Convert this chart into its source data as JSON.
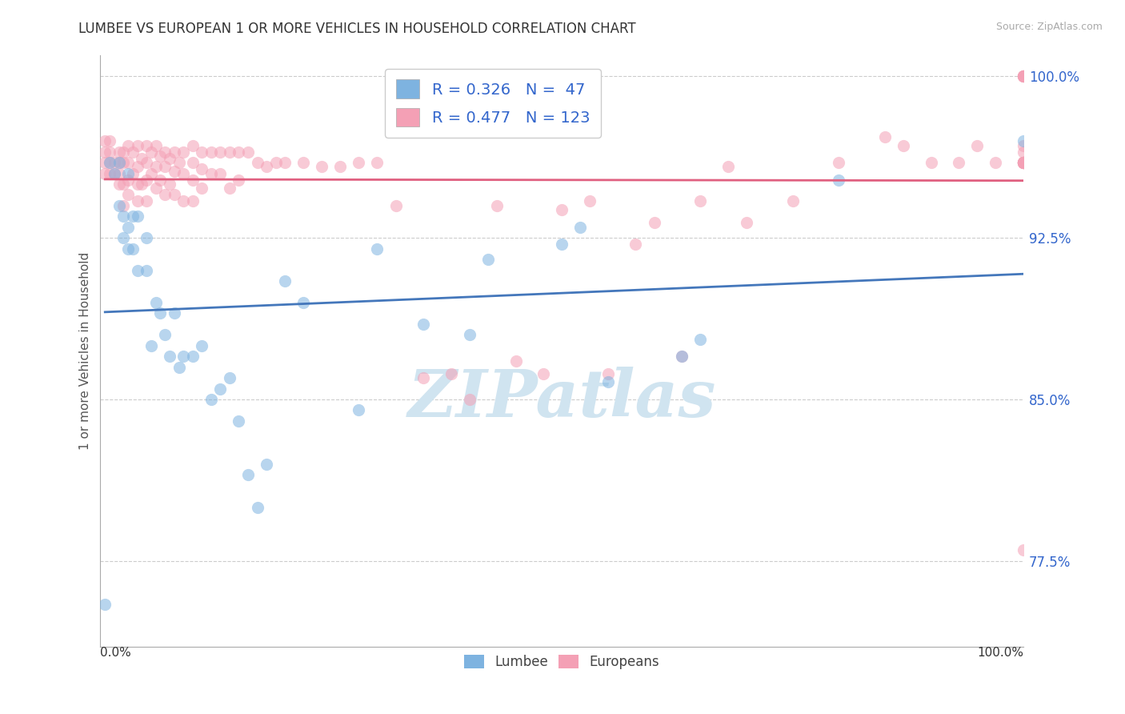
{
  "title": "LUMBEE VS EUROPEAN 1 OR MORE VEHICLES IN HOUSEHOLD CORRELATION CHART",
  "source": "Source: ZipAtlas.com",
  "ylabel": "1 or more Vehicles in Household",
  "ytick_labels": [
    "77.5%",
    "85.0%",
    "92.5%",
    "100.0%"
  ],
  "ytick_values": [
    0.775,
    0.85,
    0.925,
    1.0
  ],
  "xlim": [
    0.0,
    1.0
  ],
  "ylim": [
    0.735,
    1.01
  ],
  "lumbee_R": 0.326,
  "lumbee_N": 47,
  "european_R": 0.477,
  "european_N": 123,
  "lumbee_color": "#7EB3E0",
  "european_color": "#F4A0B5",
  "lumbee_line_color": "#4477BB",
  "european_line_color": "#E06080",
  "watermark_color": "#D0E4F0",
  "legend_R_color": "#3366CC",
  "dot_size": 120,
  "dot_alpha": 0.55,
  "lumbee_x": [
    0.005,
    0.01,
    0.015,
    0.02,
    0.02,
    0.025,
    0.025,
    0.03,
    0.03,
    0.03,
    0.035,
    0.035,
    0.04,
    0.04,
    0.05,
    0.05,
    0.055,
    0.06,
    0.065,
    0.07,
    0.075,
    0.08,
    0.085,
    0.09,
    0.1,
    0.11,
    0.12,
    0.13,
    0.14,
    0.15,
    0.16,
    0.17,
    0.18,
    0.2,
    0.22,
    0.28,
    0.3,
    0.35,
    0.4,
    0.42,
    0.5,
    0.52,
    0.55,
    0.63,
    0.65,
    0.8,
    1.0
  ],
  "lumbee_y": [
    0.755,
    0.96,
    0.955,
    0.94,
    0.96,
    0.935,
    0.925,
    0.955,
    0.93,
    0.92,
    0.935,
    0.92,
    0.935,
    0.91,
    0.925,
    0.91,
    0.875,
    0.895,
    0.89,
    0.88,
    0.87,
    0.89,
    0.865,
    0.87,
    0.87,
    0.875,
    0.85,
    0.855,
    0.86,
    0.84,
    0.815,
    0.8,
    0.82,
    0.905,
    0.895,
    0.845,
    0.92,
    0.885,
    0.88,
    0.915,
    0.922,
    0.93,
    0.858,
    0.87,
    0.878,
    0.952,
    0.97
  ],
  "european_x": [
    0.005,
    0.005,
    0.005,
    0.005,
    0.01,
    0.01,
    0.01,
    0.01,
    0.015,
    0.015,
    0.02,
    0.02,
    0.02,
    0.02,
    0.025,
    0.025,
    0.025,
    0.025,
    0.03,
    0.03,
    0.03,
    0.03,
    0.035,
    0.035,
    0.04,
    0.04,
    0.04,
    0.04,
    0.045,
    0.045,
    0.05,
    0.05,
    0.05,
    0.05,
    0.055,
    0.055,
    0.06,
    0.06,
    0.06,
    0.065,
    0.065,
    0.07,
    0.07,
    0.07,
    0.075,
    0.075,
    0.08,
    0.08,
    0.08,
    0.085,
    0.09,
    0.09,
    0.09,
    0.1,
    0.1,
    0.1,
    0.1,
    0.11,
    0.11,
    0.11,
    0.12,
    0.12,
    0.13,
    0.13,
    0.14,
    0.14,
    0.15,
    0.15,
    0.16,
    0.17,
    0.18,
    0.19,
    0.2,
    0.22,
    0.24,
    0.26,
    0.28,
    0.3,
    0.32,
    0.35,
    0.38,
    0.4,
    0.43,
    0.45,
    0.48,
    0.5,
    0.53,
    0.55,
    0.58,
    0.6,
    0.63,
    0.65,
    0.68,
    0.7,
    0.75,
    0.8,
    0.85,
    0.87,
    0.9,
    0.93,
    0.95,
    0.97,
    1.0,
    1.0,
    1.0,
    1.0,
    1.0,
    1.0,
    1.0,
    1.0,
    1.0,
    1.0,
    1.0,
    1.0,
    1.0,
    1.0,
    1.0,
    1.0,
    1.0,
    1.0,
    1.0,
    1.0,
    1.0
  ],
  "european_y": [
    0.96,
    0.955,
    0.97,
    0.965,
    0.96,
    0.955,
    0.97,
    0.965,
    0.96,
    0.955,
    0.965,
    0.955,
    0.96,
    0.95,
    0.965,
    0.96,
    0.95,
    0.94,
    0.968,
    0.96,
    0.952,
    0.945,
    0.965,
    0.955,
    0.968,
    0.958,
    0.95,
    0.942,
    0.962,
    0.95,
    0.968,
    0.96,
    0.952,
    0.942,
    0.965,
    0.955,
    0.968,
    0.958,
    0.948,
    0.963,
    0.952,
    0.965,
    0.958,
    0.945,
    0.962,
    0.95,
    0.965,
    0.956,
    0.945,
    0.96,
    0.965,
    0.955,
    0.942,
    0.968,
    0.96,
    0.952,
    0.942,
    0.965,
    0.957,
    0.948,
    0.965,
    0.955,
    0.965,
    0.955,
    0.965,
    0.948,
    0.965,
    0.952,
    0.965,
    0.96,
    0.958,
    0.96,
    0.96,
    0.96,
    0.958,
    0.958,
    0.96,
    0.96,
    0.94,
    0.86,
    0.862,
    0.85,
    0.94,
    0.868,
    0.862,
    0.938,
    0.942,
    0.862,
    0.922,
    0.932,
    0.87,
    0.942,
    0.958,
    0.932,
    0.942,
    0.96,
    0.972,
    0.968,
    0.96,
    0.96,
    0.968,
    0.96,
    1.0,
    1.0,
    1.0,
    1.0,
    1.0,
    1.0,
    0.96,
    0.96,
    0.968,
    0.96,
    0.96,
    0.78,
    0.96,
    0.96,
    0.96,
    0.96,
    0.965,
    0.96,
    0.96,
    0.96,
    0.96
  ]
}
